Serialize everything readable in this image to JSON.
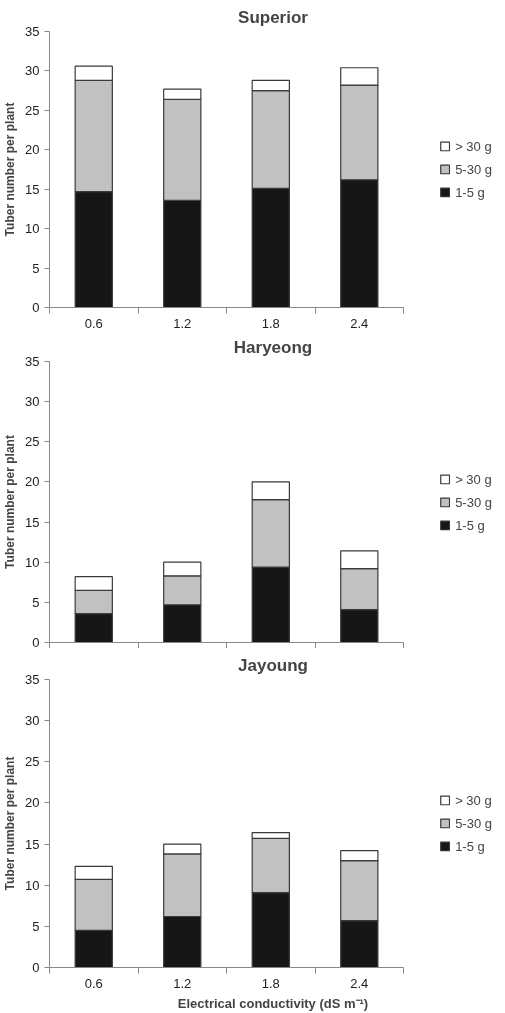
{
  "chart_data": [
    {
      "type": "bar",
      "title": "Superior",
      "ylabel": "Tuber number per plant",
      "categories": [
        "0.6",
        "1.2",
        "1.8",
        "2.4"
      ],
      "stacked": true,
      "ylim": [
        0,
        35
      ],
      "yticks": [
        0,
        5,
        10,
        15,
        20,
        25,
        30,
        35
      ],
      "grid": false,
      "legend": "right",
      "series": [
        {
          "name": "1-5 g",
          "color": "#161616",
          "values": [
            14.7,
            13.6,
            15.1,
            16.2
          ]
        },
        {
          "name": "5-30 g",
          "color": "#c0c1c0",
          "values": [
            14.1,
            12.8,
            12.4,
            12.0
          ]
        },
        {
          "name": "> 30 g",
          "color": "#ffffff",
          "values": [
            1.8,
            1.3,
            1.3,
            2.2
          ]
        }
      ]
    },
    {
      "type": "bar",
      "title": "Haryeong",
      "ylabel": "Tuber number per plant",
      "categories": [
        "0.6",
        "1.2",
        "1.8",
        "2.4"
      ],
      "stacked": true,
      "ylim": [
        0,
        35
      ],
      "yticks": [
        0,
        5,
        10,
        15,
        20,
        25,
        30,
        35
      ],
      "grid": false,
      "legend": "right",
      "tick_labels": "y",
      "series": [
        {
          "name": "1-5 g",
          "color": "#161616",
          "values": [
            3.6,
            4.7,
            9.4,
            4.1
          ]
        },
        {
          "name": "5-30 g",
          "color": "#c0c1c0",
          "values": [
            2.9,
            3.6,
            8.4,
            5.1
          ]
        },
        {
          "name": "> 30 g",
          "color": "#ffffff",
          "values": [
            1.7,
            1.7,
            2.2,
            2.2
          ]
        }
      ]
    },
    {
      "type": "bar",
      "title": "Jayoung",
      "ylabel": "Tuber number per plant",
      "xlabel": "Electrical conductivity (dS m⁻¹)",
      "categories": [
        "0.6",
        "1.2",
        "1.8",
        "2.4"
      ],
      "stacked": true,
      "ylim": [
        0,
        35
      ],
      "yticks": [
        0,
        5,
        10,
        15,
        20,
        25,
        30,
        35
      ],
      "grid": false,
      "legend": "right",
      "series": [
        {
          "name": "1-5 g",
          "color": "#161616",
          "values": [
            4.5,
            6.2,
            9.1,
            5.7
          ]
        },
        {
          "name": "5-30 g",
          "color": "#c0c1c0",
          "values": [
            6.2,
            7.6,
            6.6,
            7.3
          ]
        },
        {
          "name": "> 30 g",
          "color": "#ffffff",
          "values": [
            1.6,
            1.2,
            0.7,
            1.2
          ]
        }
      ]
    }
  ]
}
